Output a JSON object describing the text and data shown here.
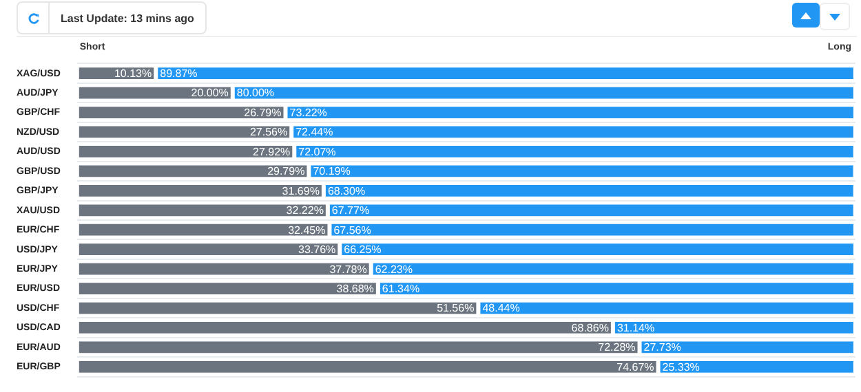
{
  "chart_data": {
    "type": "bar",
    "orientation": "horizontal",
    "stacked": true,
    "annotations": [
      "Last Update: 13 mins ago"
    ],
    "categories": [
      "XAG/USD",
      "AUD/JPY",
      "GBP/CHF",
      "NZD/USD",
      "AUD/USD",
      "GBP/USD",
      "GBP/JPY",
      "XAU/USD",
      "EUR/CHF",
      "USD/JPY",
      "EUR/JPY",
      "EUR/USD",
      "USD/CHF",
      "USD/CAD",
      "EUR/AUD",
      "EUR/GBP"
    ],
    "series": [
      {
        "name": "Short",
        "color": "#6c757f",
        "values": [
          10.13,
          20.0,
          26.79,
          27.56,
          27.92,
          29.79,
          31.69,
          32.22,
          32.45,
          33.76,
          37.78,
          38.68,
          51.56,
          68.86,
          72.28,
          74.67
        ],
        "value_labels": [
          "10.13%",
          "20.00%",
          "26.79%",
          "27.56%",
          "27.92%",
          "29.79%",
          "31.69%",
          "32.22%",
          "32.45%",
          "33.76%",
          "37.78%",
          "38.68%",
          "51.56%",
          "68.86%",
          "72.28%",
          "74.67%"
        ]
      },
      {
        "name": "Long",
        "color": "#2196f3",
        "values": [
          89.87,
          80.0,
          73.22,
          72.44,
          72.07,
          70.19,
          68.3,
          67.77,
          67.56,
          66.25,
          62.23,
          61.34,
          48.44,
          31.14,
          27.73,
          25.33
        ],
        "value_labels": [
          "89.87%",
          "80.00%",
          "73.22%",
          "72.44%",
          "72.07%",
          "70.19%",
          "68.30%",
          "67.77%",
          "67.56%",
          "66.25%",
          "62.23%",
          "61.34%",
          "48.44%",
          "31.14%",
          "27.73%",
          "25.33%"
        ]
      }
    ],
    "tick_labels": "y",
    "grid": "y"
  }
}
